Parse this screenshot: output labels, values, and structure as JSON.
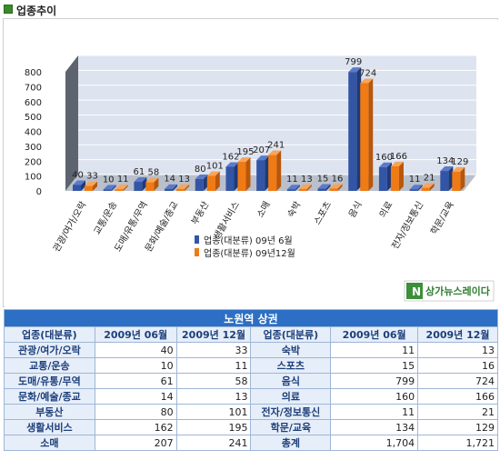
{
  "header": {
    "title": "업종추이"
  },
  "chart_data": {
    "type": "bar",
    "categories": [
      "관광/여가/오락",
      "교통/운송",
      "도매/유통/무역",
      "문화/예술/종교",
      "부동산",
      "생활서비스",
      "소매",
      "숙박",
      "스포츠",
      "음식",
      "의료",
      "전자/정보통신",
      "학문/교육"
    ],
    "series": [
      {
        "name": "업종(대분류) 09년 6월",
        "values": [
          40,
          10,
          61,
          14,
          80,
          162,
          207,
          11,
          15,
          799,
          160,
          11,
          134
        ]
      },
      {
        "name": "업종(대분류) 09년12월",
        "values": [
          33,
          11,
          58,
          13,
          101,
          195,
          241,
          13,
          16,
          724,
          166,
          21,
          129
        ]
      }
    ],
    "yticks": [
      "0",
      "100",
      "200",
      "300",
      "400",
      "500",
      "600",
      "700",
      "800"
    ],
    "ylim": [
      0,
      800
    ],
    "legend_position": "bottom-center",
    "colors": {
      "series1": "#3355a6",
      "series2": "#f07a13",
      "plot_bg": "#dde3ef"
    }
  },
  "watermark": {
    "logo_text": "상가뉴스레이다"
  },
  "table": {
    "title": "노원역 상권",
    "headers": [
      "업종(대분류)",
      "2009년 06월",
      "2009년 12월",
      "업종(대분류)",
      "2009년 06월",
      "2009년 12월"
    ],
    "rows": [
      [
        "관광/여가/오락",
        "40",
        "33",
        "숙박",
        "11",
        "13"
      ],
      [
        "교통/운송",
        "10",
        "11",
        "스포츠",
        "15",
        "16"
      ],
      [
        "도매/유통/무역",
        "61",
        "58",
        "음식",
        "799",
        "724"
      ],
      [
        "문화/예술/종교",
        "14",
        "13",
        "의료",
        "160",
        "166"
      ],
      [
        "부동산",
        "80",
        "101",
        "전자/정보통신",
        "11",
        "21"
      ],
      [
        "생활서비스",
        "162",
        "195",
        "학문/교육",
        "134",
        "129"
      ],
      [
        "소매",
        "207",
        "241",
        "총계",
        "1,704",
        "1,721"
      ]
    ]
  }
}
